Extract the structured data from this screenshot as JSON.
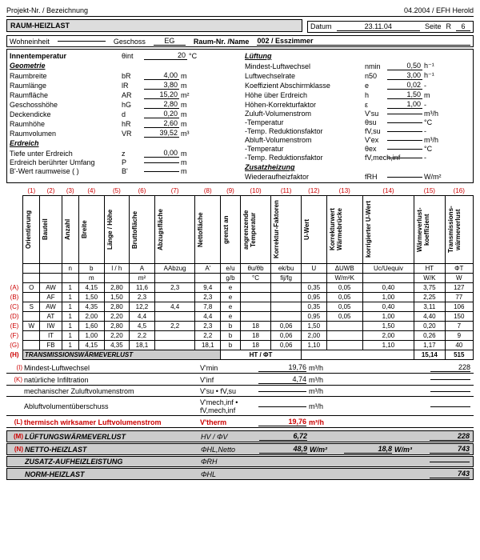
{
  "project": {
    "label": "Projekt-Nr. / Bezeichnung",
    "date_code": "04.2004 / EFH Herold"
  },
  "title": "RAUM-HEIZLAST",
  "meta": {
    "datum_lbl": "Datum",
    "datum": "23.11.04",
    "seite_lbl": "Seite",
    "seite_r": "R",
    "seite_n": "6",
    "wohneinheit_lbl": "Wohneinheit",
    "geschoss_lbl": "Geschoss",
    "geschoss": "EG",
    "raumnr_lbl": "Raum-Nr. /Name",
    "raumnr": "002 / Esszimmer"
  },
  "innen": {
    "label": "Innentemperatur",
    "sym": "θint",
    "val": "20",
    "unit": "°C"
  },
  "luft_hdr": "Lüftung",
  "geometrie": {
    "title": "Geometrie",
    "rows": [
      {
        "lbl": "Raumbreite",
        "sym": "bR",
        "val": "4,00",
        "unit": "m"
      },
      {
        "lbl": "Raumlänge",
        "sym": "lR",
        "val": "3,80",
        "unit": "m"
      },
      {
        "lbl": "Raumfläche",
        "sym": "AR",
        "val": "15,20",
        "unit": "m²"
      },
      {
        "lbl": "Geschosshöhe",
        "sym": "hG",
        "val": "2,80",
        "unit": "m"
      },
      {
        "lbl": "Deckendicke",
        "sym": "d",
        "val": "0,20",
        "unit": "m"
      },
      {
        "lbl": "Raumhöhe",
        "sym": "hR",
        "val": "2,60",
        "unit": "m"
      },
      {
        "lbl": "Raumvolumen",
        "sym": "VR",
        "val": "39,52",
        "unit": "m³"
      }
    ],
    "erdreich_title": "Erdreich",
    "erd": [
      {
        "lbl": "Tiefe unter Erdreich",
        "sym": "z",
        "val": "0,00",
        "unit": "m"
      },
      {
        "lbl": "Erdreich berührter Umfang",
        "sym": "P",
        "val": "",
        "unit": "m"
      },
      {
        "lbl": "B'-Wert  raumweise (    )",
        "sym": "B'",
        "val": "",
        "unit": "m"
      }
    ]
  },
  "ventilation": {
    "rows": [
      {
        "lbl": "Mindest-Luftwechsel",
        "sym": "nmin",
        "val": "0,50",
        "unit": "h⁻¹"
      },
      {
        "lbl": "Luftwechselrate",
        "sym": "n50",
        "val": "3,00",
        "unit": "h⁻¹"
      },
      {
        "lbl": "Koeffizient Abschirmklasse",
        "sym": "e",
        "val": "0,02",
        "unit": "-"
      },
      {
        "lbl": "Höhe über Erdreich",
        "sym": "h",
        "val": "1,50",
        "unit": "m"
      },
      {
        "lbl": "Höhen-Korrekturfaktor",
        "sym": "ε",
        "val": "1,00",
        "unit": "-"
      },
      {
        "lbl": "Zuluft-Volumenstrom",
        "sym": "V'su",
        "val": "",
        "unit": "m³/h"
      },
      {
        "lbl": "-Temperatur",
        "sym": "θsu",
        "val": "",
        "unit": "°C"
      },
      {
        "lbl": "-Temp. Reduktionsfaktor",
        "sym": "fV,su",
        "val": "",
        "unit": "-"
      },
      {
        "lbl": "Abluft-Volumenstrom",
        "sym": "V'ex",
        "val": "",
        "unit": "m³/h"
      },
      {
        "lbl": "-Temperatur",
        "sym": "θex",
        "val": "",
        "unit": "°C"
      },
      {
        "lbl": "-Temp. Reduktionsfaktor",
        "sym": "fV,mech,inf",
        "val": "",
        "unit": "-"
      }
    ],
    "zusatz_title": "Zusatzheizung",
    "zusatz": [
      {
        "lbl": "Wiederaufheizfaktor",
        "sym": "fRH",
        "val": "",
        "unit": "W/m²"
      }
    ]
  },
  "colnums": [
    "(1)",
    "(2)",
    "(3)",
    "(4)",
    "(5)",
    "(6)",
    "(7)",
    "(8)",
    "(9)",
    "(10)",
    "(11)",
    "(12)",
    "(13)",
    "(14)",
    "(15)",
    "(16)"
  ],
  "cols": [
    "Orientierung",
    "Bauteil",
    "Anzahl",
    "Breite",
    "Länge / Höhe",
    "Bruttofläche",
    "Abzugsfläche",
    "Nettofläche",
    "grenzt an",
    "angrenzende Temperatur",
    "Korrektur-Faktoren",
    "U-Wert",
    "Korrekturwert Wärmebrücke",
    "korrigierter U-Wert",
    "Wärmeverlust-koeffizient",
    "Transmissions-wärmeverlust"
  ],
  "units_row": [
    "",
    "",
    "n",
    "b",
    "l / h",
    "A",
    "AAbzug",
    "A'",
    "e/u",
    "θu/θb",
    "ek/bu",
    "U",
    "ΔUWB",
    "Uc/Uequiv",
    "HT",
    "ΦT"
  ],
  "units2": [
    "",
    "",
    "",
    "m",
    "",
    "m²",
    "",
    "",
    "g/b",
    "°C",
    "fij/fg",
    "",
    "W/m²K",
    "",
    "W/K",
    "W"
  ],
  "rowlabels": [
    "(A)",
    "(B)",
    "(C)",
    "(D)",
    "(E)",
    "(F)",
    "(G)"
  ],
  "rows": [
    [
      "O",
      "AW",
      "1",
      "4,15",
      "2,80",
      "11,6",
      "2,3",
      "9,4",
      "e",
      "",
      "",
      "0,35",
      "0,05",
      "0,40",
      "3,75",
      "127"
    ],
    [
      "",
      "AF",
      "1",
      "1,50",
      "1,50",
      "2,3",
      "",
      "2,3",
      "e",
      "",
      "",
      "0,95",
      "0,05",
      "1,00",
      "2,25",
      "77"
    ],
    [
      "S",
      "AW",
      "1",
      "4,35",
      "2,80",
      "12,2",
      "4,4",
      "7,8",
      "e",
      "",
      "",
      "0,35",
      "0,05",
      "0,40",
      "3,11",
      "106"
    ],
    [
      "",
      "AT",
      "1",
      "2,00",
      "2,20",
      "4,4",
      "",
      "4,4",
      "e",
      "",
      "",
      "0,95",
      "0,05",
      "1,00",
      "4,40",
      "150"
    ],
    [
      "W",
      "IW",
      "1",
      "1,60",
      "2,80",
      "4,5",
      "2,2",
      "2,3",
      "b",
      "18",
      "0,06",
      "1,50",
      "",
      "1,50",
      "0,20",
      "7"
    ],
    [
      "",
      "IT",
      "1",
      "1,00",
      "2,20",
      "2,2",
      "",
      "2,2",
      "b",
      "18",
      "0,06",
      "2,00",
      "",
      "2,00",
      "0,26",
      "9"
    ],
    [
      "",
      "FB",
      "1",
      "4,15",
      "4,35",
      "18,1",
      "",
      "18,1",
      "b",
      "18",
      "0,06",
      "1,10",
      "",
      "1,10",
      "1,17",
      "40"
    ]
  ],
  "trans_sum": {
    "label": "TRANSMISSIONSWÄRMEVERLUST",
    "sym": "HT / ΦT",
    "ht": "15,14",
    "phi": "515",
    "rownum": "(H)"
  },
  "vent_calc": {
    "rows": [
      {
        "num": "(I)",
        "lbl": "Mindest-Luftwechsel",
        "sym": "V'min",
        "v": "19,76",
        "u": "m³/h",
        "r": "228"
      },
      {
        "num": "(K)",
        "lbl": "natürliche Infiltration",
        "sym": "V'inf",
        "v": "4,74",
        "u": "m³/h",
        "r": ""
      },
      {
        "num": "",
        "lbl": "mechanischer Zuluftvolumenstrom",
        "sym": "V'su • fV,su",
        "v": "",
        "u": "m³/h",
        "r": ""
      },
      {
        "num": "",
        "lbl": "Abluftvolumentüberschuss",
        "sym": "V'mech,inf • fV,mech,inf",
        "v": "",
        "u": "m³/h",
        "r": ""
      }
    ],
    "therm": {
      "num": "(L)",
      "lbl": "thermisch wirksamer Luftvolumenstrom",
      "sym": "V'therm",
      "v": "19,76",
      "u": "m³/h"
    }
  },
  "summary": [
    {
      "num": "(M)",
      "cls": "line",
      "lbl": "LÜFTUNGSWÄRMEVERLUST",
      "sym": "HV / ΦV",
      "v1": "",
      "u1": "",
      "v2": "6,72",
      "r": "228"
    },
    {
      "num": "(N)",
      "cls": "line",
      "lbl": "NETTO-HEIZLAST",
      "sym": "ΦHL,Netto",
      "v1": "48,9",
      "u1": "W/m²",
      "v2": "18,8",
      "u2": "W/m³",
      "r": "743"
    },
    {
      "num": "",
      "cls": "line",
      "lbl": "ZUSATZ-AUFHEIZLEISTUNG",
      "sym": "ΦRH",
      "r": ""
    },
    {
      "num": "",
      "cls": "line",
      "lbl": "NORM-HEIZLAST",
      "sym": "ΦHL",
      "r": "743"
    }
  ]
}
